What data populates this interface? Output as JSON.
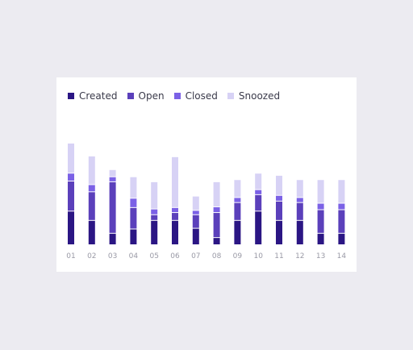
{
  "chart_data": {
    "type": "bar",
    "stacked": true,
    "categories": [
      "01",
      "02",
      "03",
      "04",
      "05",
      "06",
      "07",
      "08",
      "09",
      "10",
      "11",
      "12",
      "13",
      "14"
    ],
    "series": [
      {
        "name": "Created",
        "color": "#2b1684",
        "values": [
          47,
          34,
          16,
          22,
          34,
          34,
          23,
          10,
          34,
          47,
          34,
          34,
          16,
          16
        ]
      },
      {
        "name": "Open",
        "color": "#5b40bb",
        "values": [
          42,
          40,
          72,
          30,
          8,
          11,
          19,
          35,
          25,
          23,
          27,
          25,
          33,
          33
        ]
      },
      {
        "name": "Closed",
        "color": "#7b61e6",
        "values": [
          11,
          10,
          7,
          13,
          8,
          7,
          6,
          8,
          7,
          7,
          8,
          7,
          9,
          9
        ]
      },
      {
        "name": "Snoozed",
        "color": "#d7d2f5",
        "values": [
          42,
          40,
          10,
          30,
          38,
          71,
          20,
          35,
          25,
          23,
          28,
          25,
          33,
          33
        ]
      }
    ],
    "ylim": [
      0,
      160
    ],
    "grid": false,
    "legend": "top-left"
  }
}
